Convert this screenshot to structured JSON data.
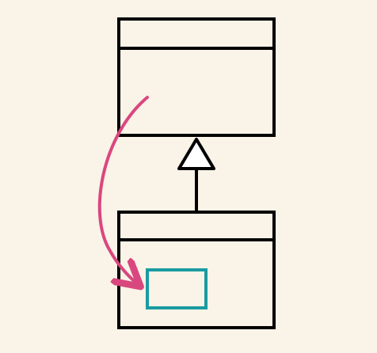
{
  "diagram": {
    "kind": "uml-class-inheritance",
    "colors": {
      "background": "#FAF3E7",
      "stroke": "#000000",
      "highlight": "#1A9BA1",
      "arrow": "#D9477F",
      "triangle_fill": "#FFFFFF"
    },
    "elements": [
      {
        "name": "superclass-box",
        "role": "parent class"
      },
      {
        "name": "subclass-box",
        "role": "child class"
      },
      {
        "name": "inheritance-arrow",
        "role": "generalization"
      },
      {
        "name": "highlighted-member",
        "role": "inherited member"
      },
      {
        "name": "inheritance-flow-arrow",
        "role": "curved arrow from parent to member"
      }
    ]
  }
}
